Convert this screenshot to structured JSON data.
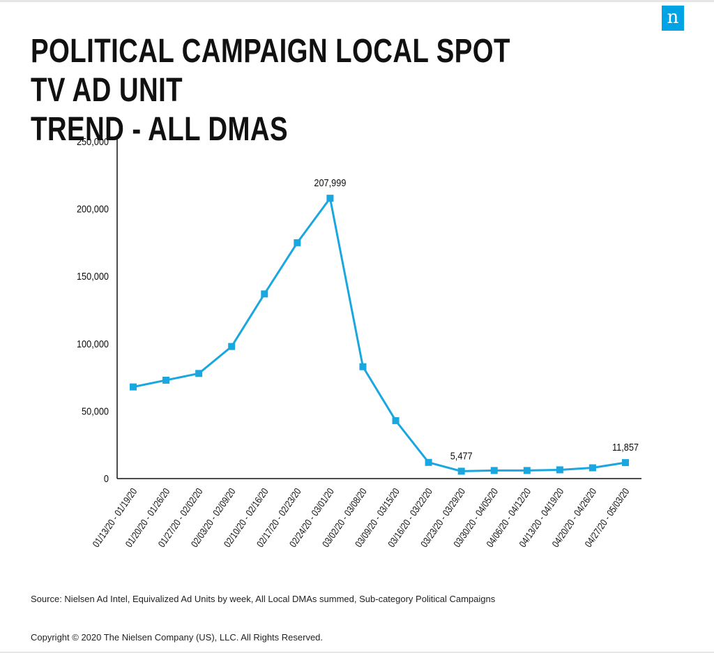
{
  "brand": {
    "logo_text": "n",
    "logo_color": "#00a4e4"
  },
  "title_lines": [
    "POLITICAL CAMPAIGN LOCAL SPOT TV AD UNIT",
    "TREND - ALL DMAS"
  ],
  "source_note": "Source: Nielsen Ad Intel, Equivalized Ad Units by week, All Local DMAs summed, Sub-category Political Campaigns",
  "copyright": "Copyright © 2020 The Nielsen Company (US), LLC. All Rights Reserved.",
  "chart_data": {
    "type": "line",
    "title": "POLITICAL CAMPAIGN LOCAL SPOT TV AD UNIT TREND - ALL DMAS",
    "xlabel": "",
    "ylabel": "",
    "ylim": [
      0,
      250000
    ],
    "y_ticks": [
      0,
      50000,
      100000,
      150000,
      200000,
      250000
    ],
    "y_tick_labels": [
      "0",
      "50,000",
      "100,000",
      "150,000",
      "200,000",
      "250,000"
    ],
    "grid": false,
    "legend": "none",
    "line_color": "#1aa7e0",
    "categories": [
      "01/13/20 - 01/19/20",
      "01/20/20 - 01/26/20",
      "01/27/20 - 02/02/20",
      "02/03/20 - 02/09/20",
      "02/10/20 - 02/16/20",
      "02/17/20 - 02/23/20",
      "02/24/20 - 03/01/20",
      "03/02/20 - 03/08/20",
      "03/09/20 - 03/15/20",
      "03/16/20 - 03/22/20",
      "03/23/20 - 03/29/20",
      "03/30/20 - 04/05/20",
      "04/06/20 - 04/12/20",
      "04/13/20 - 04/19/20",
      "04/20/20 - 04/26/20",
      "04/27/20 - 05/03/20"
    ],
    "series": [
      {
        "values": [
          68000,
          73000,
          78000,
          98000,
          137000,
          175000,
          207999,
          83000,
          43000,
          12000,
          5477,
          6000,
          6000,
          6500,
          8000,
          11857
        ]
      }
    ],
    "annotations": [
      {
        "index": 6,
        "text": "207,999"
      },
      {
        "index": 10,
        "text": "5,477"
      },
      {
        "index": 15,
        "text": "11,857"
      }
    ]
  }
}
